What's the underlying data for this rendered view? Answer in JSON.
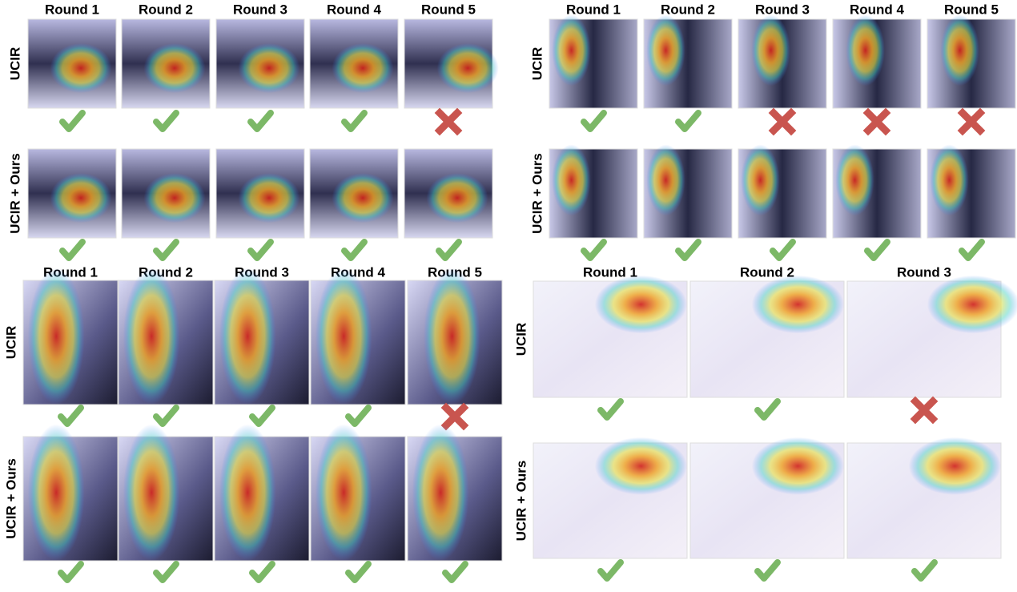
{
  "panels": [
    {
      "rounds": [
        "Round 1",
        "Round 2",
        "Round 3",
        "Round 4",
        "Round 5"
      ],
      "rows": [
        {
          "label": "UCIR",
          "results": [
            true,
            true,
            true,
            true,
            false
          ]
        },
        {
          "label": "UCIR + Ours",
          "results": [
            true,
            true,
            true,
            true,
            true
          ]
        }
      ]
    },
    {
      "rounds": [
        "Round 1",
        "Round 2",
        "Round 3",
        "Round 4",
        "Round 5"
      ],
      "rows": [
        {
          "label": "UCIR",
          "results": [
            true,
            true,
            false,
            false,
            false
          ]
        },
        {
          "label": "UCIR + Ours",
          "results": [
            true,
            true,
            true,
            true,
            true
          ]
        }
      ]
    },
    {
      "rounds": [
        "Round 1",
        "Round 2",
        "Round 3",
        "Round 4",
        "Round 5"
      ],
      "rows": [
        {
          "label": "UCIR",
          "results": [
            true,
            true,
            true,
            true,
            false
          ]
        },
        {
          "label": "UCIR + Ours",
          "results": [
            true,
            true,
            true,
            true,
            true
          ]
        }
      ]
    },
    {
      "rounds": [
        "Round 1",
        "Round 2",
        "Round 3"
      ],
      "rows": [
        {
          "label": "UCIR",
          "results": [
            true,
            true,
            false
          ]
        },
        {
          "label": "UCIR + Ours",
          "results": [
            true,
            true,
            true
          ]
        }
      ]
    }
  ]
}
